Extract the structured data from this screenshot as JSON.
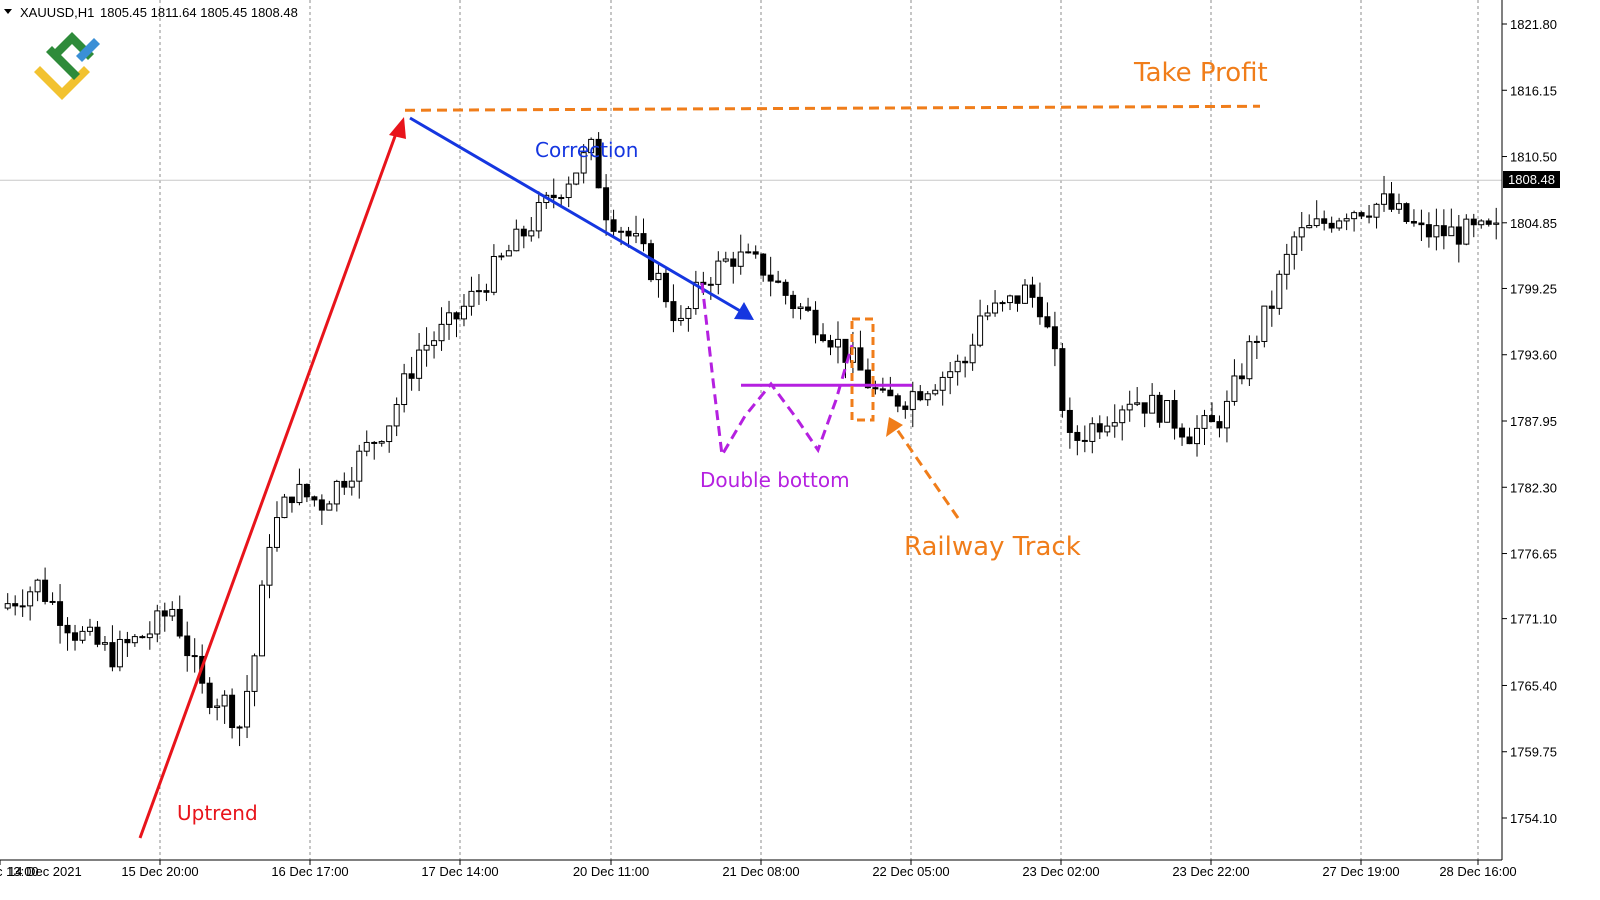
{
  "colors": {
    "background": "#ffffff",
    "grid": "#8c8c8c",
    "candle": "#000000",
    "price_line": "#c8c8c8",
    "uptrend": "#e8141b",
    "correction": "#1536e0",
    "take_profit": "#f07d1a",
    "double_bottom": "#b520e0",
    "logo_green": "#2e8b3a",
    "logo_blue": "#3a8fd6",
    "logo_yellow": "#f2c230"
  },
  "chart_data": {
    "type": "candlestick",
    "symbol_header": "XAUUSD,H1",
    "ohlc_header": "1805.45 1811.64 1805.45 1808.48",
    "current_price": 1808.48,
    "current_price_label": "1808.48",
    "ylim": [
      1751.5,
      1823.6
    ],
    "price_ticks": [
      1821.8,
      1816.15,
      1810.5,
      1804.85,
      1799.25,
      1793.6,
      1787.95,
      1782.3,
      1776.65,
      1771.1,
      1765.4,
      1759.75,
      1754.1
    ],
    "price_tick_labels": [
      "1821.80",
      "1816.15",
      "1810.50",
      "1804.85",
      "1799.25",
      "1793.60",
      "1787.95",
      "1782.30",
      "1776.65",
      "1771.10",
      "1765.40",
      "1759.75",
      "1754.10"
    ],
    "time_labels": [
      "14 Dec 2021",
      "15 Dec 20:00",
      "16 Dec 17:00",
      "17 Dec 14:00",
      "20 Dec 11:00",
      "21 Dec 08:00",
      "22 Dec 05:00",
      "23 Dec 02:00",
      "23 Dec 22:00",
      "27 Dec 19:00",
      "28 Dec 16:00",
      "29 Dec 13:00"
    ],
    "grid": true,
    "bar_count": 200,
    "price_path": [
      [
        0,
        1772.0
      ],
      [
        5,
        1774.0
      ],
      [
        10,
        1770.0
      ],
      [
        15,
        1768.0
      ],
      [
        20,
        1770.0
      ],
      [
        23,
        1772.0
      ],
      [
        27,
        1765.0
      ],
      [
        30,
        1764.0
      ],
      [
        32,
        1762.0
      ],
      [
        34,
        1768.0
      ],
      [
        36,
        1778.0
      ],
      [
        39,
        1782.0
      ],
      [
        43,
        1781.0
      ],
      [
        47,
        1784.0
      ],
      [
        52,
        1788.0
      ],
      [
        56,
        1794.0
      ],
      [
        60,
        1796.0
      ],
      [
        65,
        1800.0
      ],
      [
        70,
        1804.0
      ],
      [
        75,
        1808.0
      ],
      [
        79,
        1811.0
      ],
      [
        81,
        1806.0
      ],
      [
        85,
        1803.0
      ],
      [
        88,
        1800.0
      ],
      [
        91,
        1796.0
      ],
      [
        94,
        1800.0
      ],
      [
        98,
        1802.0
      ],
      [
        102,
        1801.0
      ],
      [
        106,
        1798.0
      ],
      [
        110,
        1796.0
      ],
      [
        114,
        1793.0
      ],
      [
        118,
        1789.5
      ],
      [
        121,
        1790.0
      ],
      [
        125,
        1791.5
      ],
      [
        129,
        1793.0
      ],
      [
        131,
        1797.0
      ],
      [
        134,
        1797.5
      ],
      [
        137,
        1799.0
      ],
      [
        139,
        1798.0
      ],
      [
        141,
        1793.0
      ],
      [
        143,
        1786.0
      ],
      [
        147,
        1788.0
      ],
      [
        151,
        1790.0
      ],
      [
        155,
        1789.0
      ],
      [
        159,
        1787.0
      ],
      [
        162,
        1787.5
      ],
      [
        164,
        1789.0
      ],
      [
        167,
        1794.0
      ],
      [
        170,
        1798.0
      ],
      [
        173,
        1803.5
      ],
      [
        176,
        1804.5
      ],
      [
        180,
        1806.0
      ],
      [
        185,
        1806.5
      ],
      [
        190,
        1804.0
      ]
    ]
  },
  "annotations": {
    "uptrend_label": "Uptrend",
    "correction_label": "Correction",
    "take_profit_label": "Take Profit",
    "double_bottom_label": "Double bottom",
    "railway_track_label": "Railway Track",
    "take_profit_level": 1814.7,
    "neckline_level": 1791.0
  },
  "logo": {
    "name": "litefinance-logo-icon"
  }
}
